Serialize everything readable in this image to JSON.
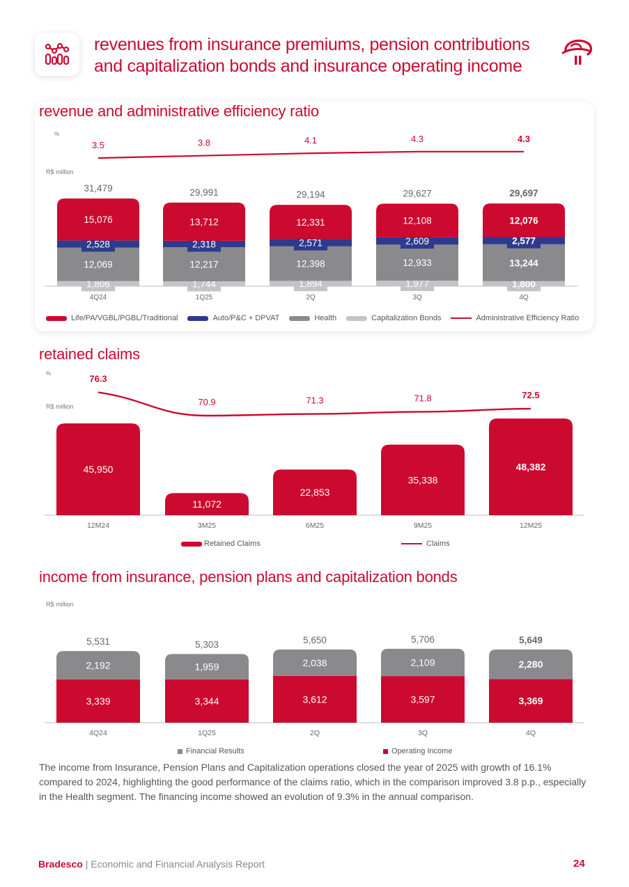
{
  "header": {
    "title": "revenues from insurance premiums, pension contributions and capitalization bonds and insurance operating income"
  },
  "colors": {
    "brand_red": "#cc092f",
    "navy": "#2e3a8c",
    "gray": "#8a8a8d",
    "light_gray": "#c4c4c6"
  },
  "chart_data": [
    {
      "type": "bar",
      "title": "revenue and administrative efficiency ratio",
      "line_unit": "%",
      "bar_unit": "R$ million",
      "categories": [
        "4Q24",
        "1Q25",
        "2Q",
        "3Q",
        "4Q"
      ],
      "totals": [
        "31,479",
        "29,991",
        "29,194",
        "29,627",
        "29,697"
      ],
      "series": [
        {
          "name": "Capitalization Bonds",
          "values": [
            1806,
            1744,
            1894,
            1977,
            1800
          ],
          "labels": [
            "1,806",
            "1,744",
            "1,894",
            "1,977",
            "1,800"
          ],
          "color": "#c4c4c6"
        },
        {
          "name": "Health",
          "values": [
            12069,
            12217,
            12398,
            12933,
            13244
          ],
          "labels": [
            "12,069",
            "12,217",
            "12,398",
            "12,933",
            "13,244"
          ],
          "color": "#8a8a8d"
        },
        {
          "name": "Auto/P&C + DPVAT",
          "values": [
            2528,
            2318,
            2571,
            2609,
            2577
          ],
          "labels": [
            "2,528",
            "2,318",
            "2,571",
            "2,609",
            "2,577"
          ],
          "color": "#2e3a8c"
        },
        {
          "name": "Life/PA/VGBL/PGBL/Traditional",
          "values": [
            15076,
            13712,
            12331,
            12108,
            12076
          ],
          "labels": [
            "15,076",
            "13,712",
            "12,331",
            "12,108",
            "12,076"
          ],
          "color": "#cc092f"
        }
      ],
      "line": {
        "name": "Administrative Efficiency Ratio",
        "values": [
          3.5,
          3.8,
          4.1,
          4.3,
          4.3
        ],
        "labels": [
          "3.5",
          "3.8",
          "4.1",
          "4.3",
          "4.3"
        ]
      },
      "legend": [
        "Life/PA/VGBL/PGBL/Traditional",
        "Auto/P&C + DPVAT",
        "Health",
        "Capitalization Bonds",
        "Administrative Efficiency Ratio"
      ]
    },
    {
      "type": "bar",
      "title": "retained claims",
      "line_unit": "%",
      "bar_unit": "R$ million",
      "categories": [
        "12M24",
        "3M25",
        "6M25",
        "9M25",
        "12M25"
      ],
      "series": [
        {
          "name": "Retained Claims",
          "values": [
            45950,
            11072,
            22853,
            35338,
            48382
          ],
          "labels": [
            "45,950",
            "11,072",
            "22,853",
            "35,338",
            "48,382"
          ],
          "color": "#cc092f"
        }
      ],
      "line": {
        "name": "Claims",
        "values": [
          76.3,
          70.9,
          71.3,
          71.8,
          72.5
        ],
        "labels": [
          "76.3",
          "70.9",
          "71.3",
          "71.8",
          "72.5"
        ]
      },
      "legend": [
        "Retained Claims",
        "Claims"
      ]
    },
    {
      "type": "bar",
      "title": "income from insurance, pension plans and capitalization bonds",
      "bar_unit": "R$ million",
      "categories": [
        "4Q24",
        "1Q25",
        "2Q",
        "3Q",
        "4Q"
      ],
      "totals": [
        "5,531",
        "5,303",
        "5,650",
        "5,706",
        "5,649"
      ],
      "series": [
        {
          "name": "Operating Income",
          "values": [
            3339,
            3344,
            3612,
            3597,
            3369
          ],
          "labels": [
            "3,339",
            "3,344",
            "3,612",
            "3,597",
            "3,369"
          ],
          "color": "#cc092f"
        },
        {
          "name": "Financial Results",
          "values": [
            2192,
            1959,
            2038,
            2109,
            2280
          ],
          "labels": [
            "2,192",
            "1,959",
            "2,038",
            "2,109",
            "2,280"
          ],
          "color": "#8a8a8d"
        }
      ],
      "legend": [
        "Financial Results",
        "Operating Income"
      ]
    }
  ],
  "body": {
    "paragraph": "The income from Insurance, Pension Plans and Capitalization operations closed the year of 2025 with growth of 16.1% compared to 2024, highlighting the good performance of the claims ratio, which in the comparison improved 3.8 p.p., especially in the Health segment. The financing income showed an evolution of 9.3% in the annual comparison."
  },
  "footer": {
    "brand": "Bradesco",
    "separator": " | ",
    "report": "Economic and Financial Analysis Report",
    "page": "24"
  }
}
